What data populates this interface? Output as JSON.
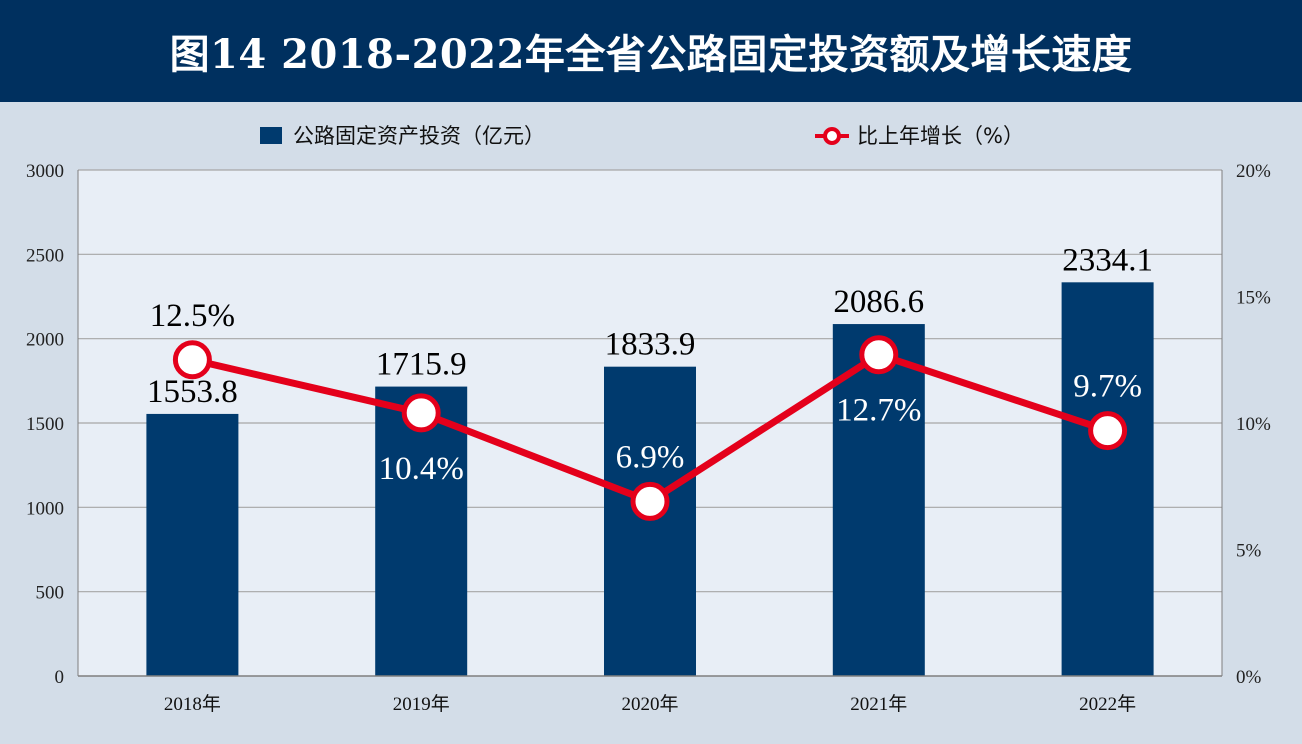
{
  "title": "图14  2018-2022年全省公路固定投资额及增长速度",
  "colors": {
    "header_bg": "#00305f",
    "page_bg": "#d3dde8",
    "plot_bg": "#e8eef6",
    "bar": "#003a6e",
    "line": "#e4001b",
    "marker_fill": "#ffffff"
  },
  "chart_data": {
    "type": "bar",
    "categories": [
      "2018年",
      "2019年",
      "2020年",
      "2021年",
      "2022年"
    ],
    "series": [
      {
        "name": "公路固定资产投资（亿元）",
        "type": "bar",
        "axis": "left",
        "values": [
          1553.8,
          1715.9,
          1833.9,
          2086.6,
          2334.1
        ],
        "labels": [
          "1553.8",
          "1715.9",
          "1833.9",
          "2086.6",
          "2334.1"
        ]
      },
      {
        "name": "比上年增长（%）",
        "type": "line",
        "axis": "right",
        "values": [
          12.5,
          10.4,
          6.9,
          12.7,
          9.7
        ],
        "labels": [
          "12.5%",
          "10.4%",
          "6.9%",
          "12.7%",
          "9.7%"
        ]
      }
    ],
    "y_left": {
      "range": [
        0,
        3000
      ],
      "ticks": [
        0,
        500,
        1000,
        1500,
        2000,
        2500,
        3000
      ],
      "tick_labels": [
        "0",
        "500",
        "1000",
        "1500",
        "2000",
        "2500",
        "3000"
      ]
    },
    "y_right": {
      "range": [
        0,
        20
      ],
      "ticks": [
        0,
        5,
        10,
        15,
        20
      ],
      "tick_labels": [
        "0%",
        "5%",
        "10%",
        "15%",
        "20%"
      ]
    },
    "grid": true,
    "legend_position": "top"
  }
}
